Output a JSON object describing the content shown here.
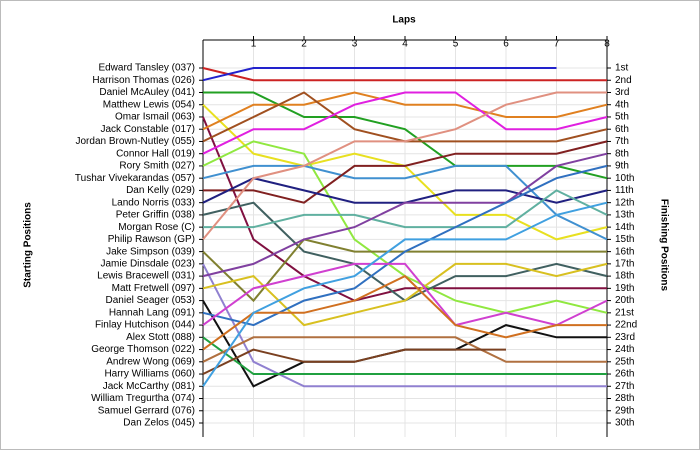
{
  "chart_data": {
    "type": "bump",
    "x_label": "Laps",
    "y_label": "Starting Positions",
    "y2_label": "Finishing Positions",
    "x": [
      0,
      1,
      2,
      3,
      4,
      5,
      6,
      7,
      8
    ],
    "xlim": [
      0,
      8
    ],
    "xticks": [
      1,
      2,
      3,
      4,
      5,
      6,
      7,
      8
    ],
    "ylim": [
      1,
      30
    ],
    "yticks": [
      {
        "value": 1,
        "label": "1st"
      },
      {
        "value": 2,
        "label": "2nd"
      },
      {
        "value": 3,
        "label": "3rd"
      },
      {
        "value": 4,
        "label": "4th"
      },
      {
        "value": 5,
        "label": "5th"
      },
      {
        "value": 6,
        "label": "6th"
      },
      {
        "value": 7,
        "label": "7th"
      },
      {
        "value": 8,
        "label": "8th"
      },
      {
        "value": 9,
        "label": "9th"
      },
      {
        "value": 10,
        "label": "10th"
      },
      {
        "value": 11,
        "label": "11th"
      },
      {
        "value": 12,
        "label": "12th"
      },
      {
        "value": 13,
        "label": "13th"
      },
      {
        "value": 14,
        "label": "14th"
      },
      {
        "value": 15,
        "label": "15th"
      },
      {
        "value": 16,
        "label": "16th"
      },
      {
        "value": 17,
        "label": "17th"
      },
      {
        "value": 18,
        "label": "18th"
      },
      {
        "value": 19,
        "label": "19th"
      },
      {
        "value": 20,
        "label": "20th"
      },
      {
        "value": 21,
        "label": "21st"
      },
      {
        "value": 22,
        "label": "22nd"
      },
      {
        "value": 23,
        "label": "23rd"
      },
      {
        "value": 24,
        "label": "24th"
      },
      {
        "value": 25,
        "label": "25th"
      },
      {
        "value": 26,
        "label": "26th"
      },
      {
        "value": 27,
        "label": "27th"
      },
      {
        "value": 28,
        "label": "28th"
      },
      {
        "value": 29,
        "label": "29th"
      },
      {
        "value": 30,
        "label": "30th"
      }
    ],
    "grid": true,
    "series": [
      {
        "name": "Edward Tansley (037)",
        "color": "#cc2222",
        "values": [
          1,
          2,
          2,
          2,
          2,
          2,
          2,
          2,
          2
        ]
      },
      {
        "name": "Harrison Thomas (026)",
        "color": "#2222cc",
        "values": [
          2,
          1,
          1,
          1,
          1,
          1,
          1,
          1,
          null
        ]
      },
      {
        "name": "Daniel McAuley (041)",
        "color": "#22a022",
        "values": [
          3,
          3,
          5,
          5,
          6,
          9,
          9,
          9,
          10
        ]
      },
      {
        "name": "Matthew Lewis (054)",
        "color": "#e8e020",
        "values": [
          4,
          8,
          9,
          8,
          9,
          13,
          13,
          15,
          14
        ]
      },
      {
        "name": "Omar Ismail (063)",
        "color": "#801040",
        "values": [
          5,
          15,
          18,
          20,
          19,
          19,
          19,
          19,
          19
        ]
      },
      {
        "name": "Jack Constable (017)",
        "color": "#e08020",
        "values": [
          6,
          4,
          4,
          3,
          4,
          4,
          5,
          5,
          4
        ]
      },
      {
        "name": "Jordan Brown-Nutley (055)",
        "color": "#a05020",
        "values": [
          7,
          5,
          3,
          6,
          7,
          7,
          7,
          7,
          6
        ]
      },
      {
        "name": "Connor Hall (019)",
        "color": "#e020e0",
        "values": [
          8,
          6,
          6,
          4,
          3,
          3,
          6,
          6,
          5
        ]
      },
      {
        "name": "Rory Smith (027)",
        "color": "#90e840",
        "values": [
          9,
          7,
          8,
          15,
          18,
          20,
          21,
          20,
          21
        ]
      },
      {
        "name": "Tushar Vivekarandas (057)",
        "color": "#4090d0",
        "values": [
          10,
          9,
          9,
          10,
          10,
          9,
          9,
          13,
          15
        ]
      },
      {
        "name": "Dan Kelly (029)",
        "color": "#802020",
        "values": [
          11,
          11,
          12,
          9,
          9,
          8,
          8,
          8,
          7
        ]
      },
      {
        "name": "Lando Norris (033)",
        "color": "#202080",
        "values": [
          12,
          10,
          11,
          12,
          12,
          11,
          11,
          12,
          11
        ]
      },
      {
        "name": "Peter Griffin (038)",
        "color": "#406060",
        "values": [
          13,
          12,
          16,
          17,
          20,
          18,
          18,
          17,
          18
        ]
      },
      {
        "name": "Morgan Rose (C)",
        "color": "#60b0a0",
        "values": [
          14,
          14,
          13,
          13,
          14,
          14,
          14,
          11,
          13
        ]
      },
      {
        "name": "Philip Rawson (GP)",
        "color": "#e09080",
        "values": [
          15,
          10,
          9,
          7,
          7,
          6,
          4,
          3,
          3
        ]
      },
      {
        "name": "Jake Simpson (039)",
        "color": "#808030",
        "values": [
          16,
          20,
          15,
          16,
          16,
          16,
          16,
          16,
          16
        ]
      },
      {
        "name": "Jamie Dinsdale (023)",
        "color": "#9080d0",
        "values": [
          17,
          25,
          27,
          27,
          27,
          27,
          27,
          27,
          27
        ]
      },
      {
        "name": "Lewis Bracewell (031)",
        "color": "#8040a0",
        "values": [
          18,
          17,
          15,
          14,
          12,
          12,
          12,
          9,
          8
        ]
      },
      {
        "name": "Matt Fretwell (097)",
        "color": "#d8c020",
        "values": [
          19,
          18,
          22,
          21,
          20,
          17,
          17,
          18,
          17
        ]
      },
      {
        "name": "Daniel Seager (053)",
        "color": "#111111",
        "values": [
          20,
          27,
          25,
          25,
          24,
          24,
          22,
          23,
          23
        ]
      },
      {
        "name": "Hannah Lang (091)",
        "color": "#3070c0",
        "values": [
          21,
          22,
          20,
          19,
          16,
          14,
          12,
          10,
          9
        ]
      },
      {
        "name": "Finlay Hutchison (044)",
        "color": "#d040d0",
        "values": [
          22,
          19,
          18,
          17,
          17,
          22,
          21,
          22,
          20
        ]
      },
      {
        "name": "Alex Stott (088)",
        "color": "#20a040",
        "values": [
          23,
          26,
          26,
          26,
          26,
          26,
          26,
          26,
          26
        ]
      },
      {
        "name": "George Thomson (022)",
        "color": "#d07020",
        "values": [
          24,
          21,
          21,
          20,
          18,
          22,
          23,
          22,
          22
        ]
      },
      {
        "name": "Andrew Wong (069)",
        "color": "#b07040",
        "values": [
          25,
          23,
          23,
          23,
          23,
          23,
          25,
          25,
          25
        ]
      },
      {
        "name": "Harry Williams (060)",
        "color": "#7a4020",
        "values": [
          26,
          24,
          25,
          25,
          24,
          24,
          24,
          null,
          null
        ]
      },
      {
        "name": "Jack McCarthy (081)",
        "color": "#40a0e0",
        "values": [
          27,
          21,
          19,
          18,
          15,
          15,
          15,
          13,
          12
        ]
      },
      {
        "name": "William Tregurtha (074)",
        "color": "#888888",
        "values": [
          28,
          null,
          null,
          null,
          null,
          null,
          null,
          null,
          null
        ]
      },
      {
        "name": "Samuel Gerrard (076)",
        "color": "#888888",
        "values": [
          29,
          null,
          null,
          null,
          null,
          null,
          null,
          null,
          null
        ]
      },
      {
        "name": "Dan Zelos (045)",
        "color": "#888888",
        "values": [
          30,
          null,
          null,
          null,
          null,
          null,
          null,
          null,
          null
        ]
      }
    ]
  }
}
